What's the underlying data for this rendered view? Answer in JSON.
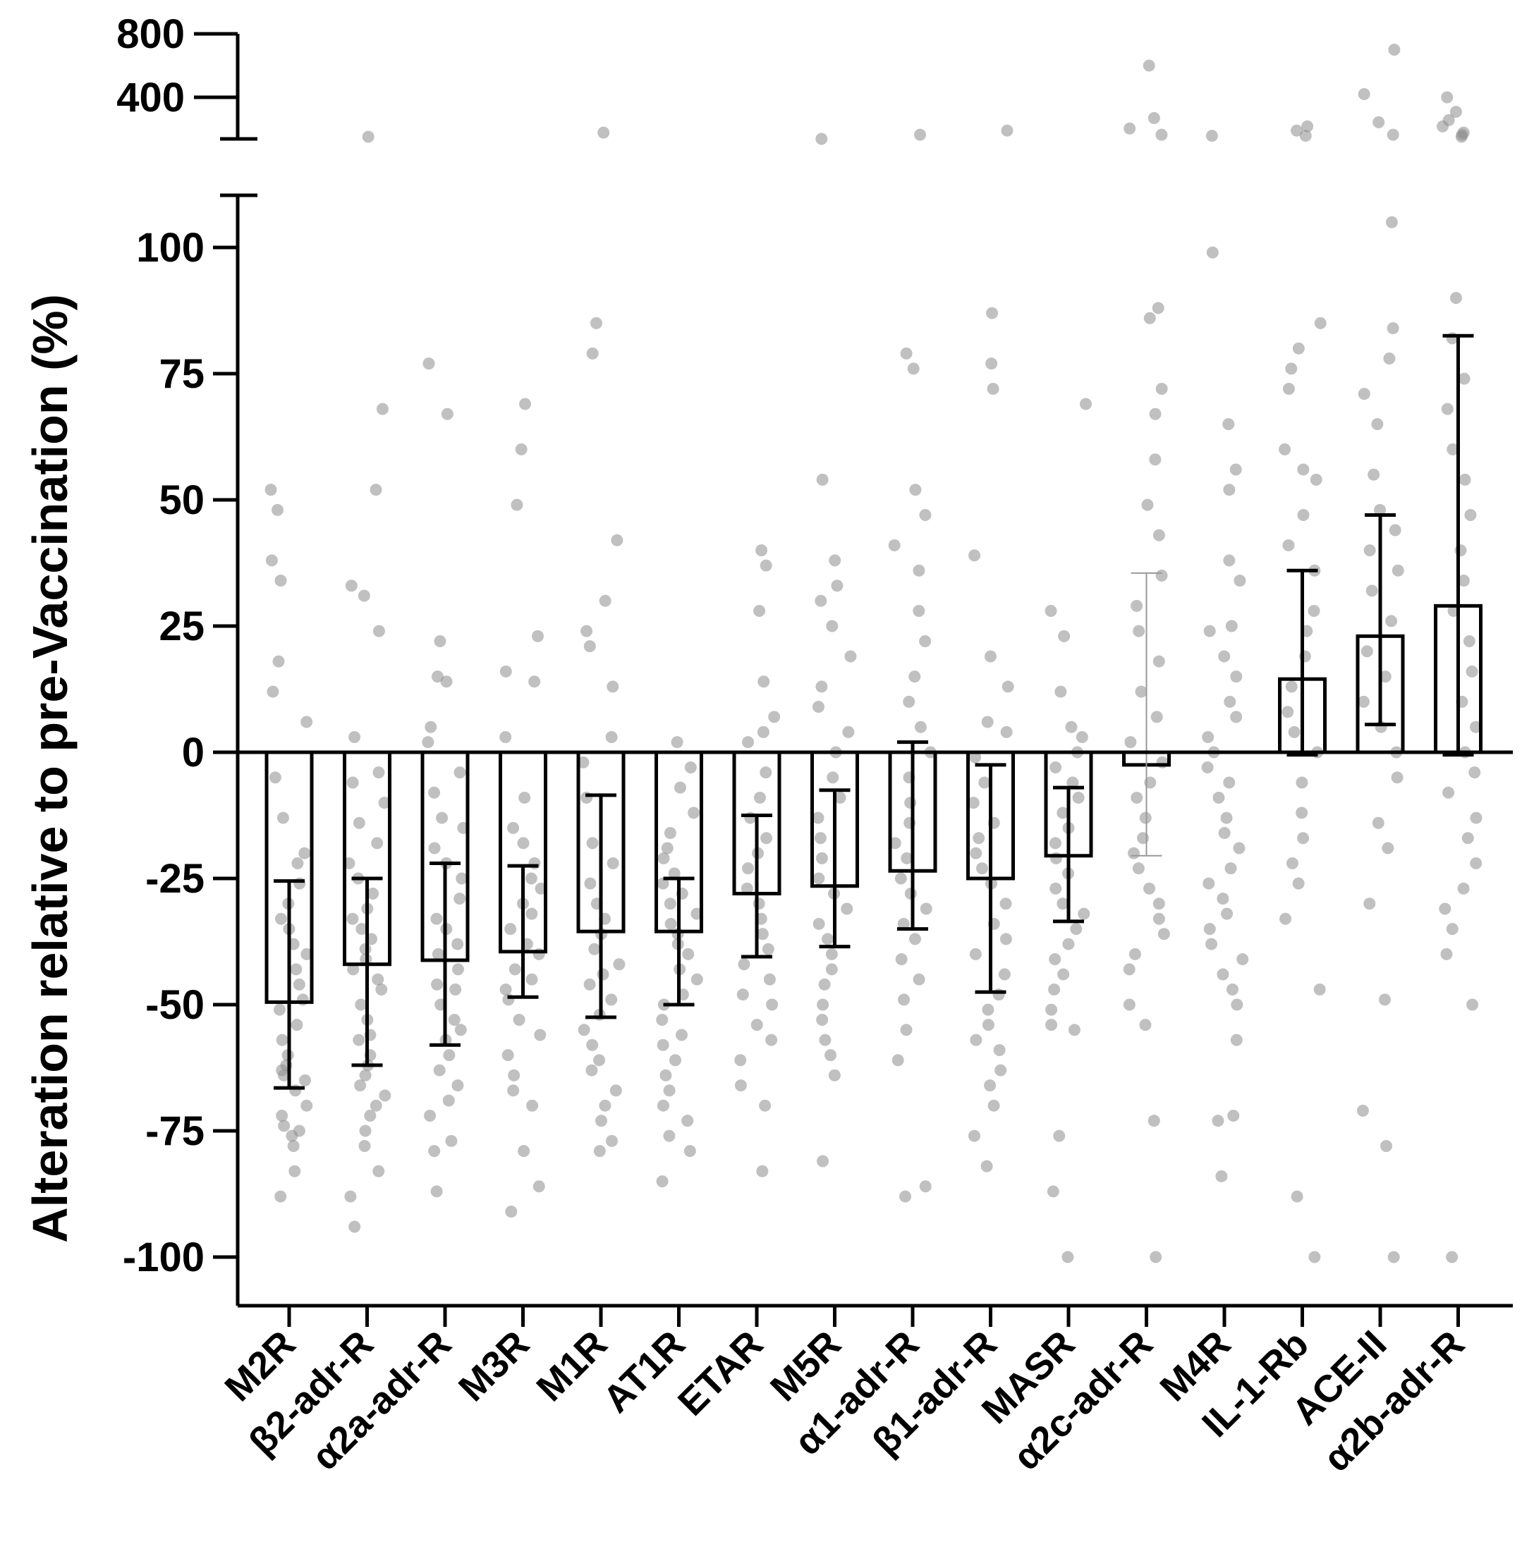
{
  "chart_data": {
    "type": "bar",
    "ylabel": "Alteration relative to pre-Vaccination (%)",
    "ylim": [
      -110,
      110
    ],
    "broken_axis": {
      "upper_segment_ticks": [
        800,
        400
      ],
      "upper_segment_tick_labels": [
        "800",
        "400"
      ],
      "note": "y-axis broken between 110 and about 200"
    },
    "y_ticks": [
      100,
      75,
      50,
      25,
      0,
      -25,
      -50,
      -75,
      -100
    ],
    "y_tick_labels": [
      "100",
      "75",
      "50",
      "25",
      "0",
      "-25",
      "-50",
      "-75",
      "-100"
    ],
    "categories": [
      "M2R",
      "β2-adr-R",
      "α2a-adr-R",
      "M3R",
      "M1R",
      "AT1R",
      "ETAR",
      "M5R",
      "α1-adr-R",
      "β1-adr-R",
      "MASR",
      "α2c-adr-R",
      "M4R",
      "IL-1-Rb",
      "ACE-II",
      "α2b-adr-R"
    ],
    "series": [
      {
        "values": [
          -49.5,
          -42,
          -41.2,
          -39.5,
          -35.5,
          -35.5,
          -28,
          -26.5,
          -23.5,
          -25,
          -20.5,
          -2.5,
          0,
          14.5,
          23,
          29
        ],
        "error_low": [
          -66.5,
          -62,
          -58,
          -48.5,
          -52.5,
          -50,
          -40.5,
          -38.5,
          -35,
          -47.5,
          -33.5,
          -20.5,
          0,
          -0.5,
          5.5,
          -0.5
        ],
        "error_high": [
          -25.5,
          -25,
          -22,
          -22.5,
          -8.5,
          -25,
          -12.5,
          -7.5,
          2,
          -2.5,
          -7,
          35.5,
          0,
          36,
          47,
          82.5
        ]
      }
    ],
    "points": [
      [
        52,
        48,
        38,
        34,
        18,
        12,
        6,
        -5,
        -13,
        -20,
        -22,
        -26,
        -30,
        -33,
        -35,
        -38,
        -40,
        -43,
        -46,
        -49,
        -51,
        -54,
        -57,
        -60,
        -62,
        -63,
        -64,
        -65,
        -67,
        -70,
        -72,
        -74,
        -75,
        -76,
        -78,
        -83,
        -88
      ],
      [
        68,
        52,
        33,
        31,
        24,
        3,
        -4,
        -6,
        -10,
        -14,
        -18,
        -22,
        -25,
        -28,
        -31,
        -33,
        -35,
        -37,
        -39,
        -41,
        -43,
        -45,
        -47,
        -50,
        -53,
        -56,
        -57,
        -60,
        -62,
        -64,
        -66,
        -68,
        -70,
        -72,
        -75,
        -78,
        -83,
        -88,
        -94,
        210
      ],
      [
        77,
        67,
        22,
        15,
        14,
        5,
        2,
        -4,
        -8,
        -13,
        -15,
        -19,
        -22,
        -25,
        -29,
        -33,
        -35,
        -38,
        -40,
        -43,
        -46,
        -47,
        -50,
        -53,
        -55,
        -57,
        -60,
        -63,
        -66,
        -69,
        -72,
        -77,
        -79,
        -87
      ],
      [
        69,
        60,
        49,
        23,
        16,
        14,
        3,
        -9,
        -15,
        -18,
        -22,
        -25,
        -27,
        -30,
        -32,
        -35,
        -38,
        -40,
        -43,
        -45,
        -47,
        -49,
        -53,
        -56,
        -60,
        -64,
        -67,
        -70,
        -79,
        -86,
        -91
      ],
      [
        85,
        79,
        42,
        30,
        24,
        21,
        13,
        3,
        -2,
        -9,
        -18,
        -22,
        -26,
        -30,
        -33,
        -36,
        -39,
        -42,
        -44,
        -46,
        -49,
        -52,
        -55,
        -58,
        -61,
        -63,
        -67,
        -70,
        -73,
        -77,
        -79,
        230
      ],
      [
        2,
        -3,
        -7,
        -12,
        -16,
        -19,
        -21,
        -24,
        -26,
        -28,
        -30,
        -32,
        -34,
        -36,
        -38,
        -40,
        -43,
        -45,
        -48,
        -50,
        -53,
        -56,
        -58,
        -61,
        -64,
        -67,
        -70,
        -73,
        -76,
        -79,
        -85
      ],
      [
        40,
        37,
        28,
        14,
        7,
        4,
        2,
        -4,
        -9,
        -13,
        -17,
        -20,
        -23,
        -27,
        -30,
        -33,
        -36,
        -39,
        -42,
        -45,
        -48,
        -50,
        -54,
        -57,
        -61,
        -66,
        -70,
        -83
      ],
      [
        54,
        38,
        33,
        30,
        25,
        19,
        13,
        9,
        4,
        0,
        -5,
        -9,
        -13,
        -17,
        -21,
        -25,
        -28,
        -31,
        -34,
        -37,
        -40,
        -43,
        -46,
        -50,
        -53,
        -57,
        -60,
        -64,
        -81,
        200
      ],
      [
        79,
        76,
        52,
        47,
        41,
        36,
        28,
        22,
        15,
        10,
        5,
        0,
        -5,
        -10,
        -14,
        -18,
        -21,
        -25,
        -28,
        -31,
        -34,
        -37,
        -41,
        -45,
        -49,
        -55,
        -61,
        -86,
        -88,
        220
      ],
      [
        87,
        77,
        72,
        39,
        19,
        13,
        6,
        4,
        -1,
        -6,
        -10,
        -14,
        -17,
        -20,
        -23,
        -26,
        -30,
        -34,
        -37,
        -40,
        -44,
        -48,
        -51,
        -54,
        -57,
        -59,
        -63,
        -66,
        -70,
        -76,
        -82,
        240
      ],
      [
        69,
        28,
        23,
        12,
        5,
        3,
        0,
        -3,
        -6,
        -9,
        -12,
        -15,
        -18,
        -21,
        -24,
        -27,
        -30,
        -32,
        -35,
        -38,
        -41,
        -44,
        -47,
        -51,
        -54,
        -55,
        -76,
        -87,
        -100
      ],
      [
        88,
        86,
        72,
        67,
        58,
        49,
        43,
        35,
        29,
        24,
        18,
        12,
        7,
        2,
        -2,
        -6,
        -9,
        -13,
        -17,
        -20,
        -23,
        -27,
        -30,
        -33,
        -36,
        -40,
        -43,
        -50,
        -54,
        -73,
        -100,
        220,
        250,
        300,
        600
      ],
      [
        99,
        65,
        56,
        52,
        38,
        34,
        25,
        24,
        19,
        15,
        10,
        7,
        3,
        0,
        -3,
        -6,
        -9,
        -13,
        -16,
        -19,
        -23,
        -26,
        -29,
        -32,
        -35,
        -38,
        -41,
        -44,
        -47,
        -50,
        -57,
        -72,
        -73,
        -84,
        215
      ],
      [
        85,
        80,
        76,
        72,
        60,
        56,
        54,
        47,
        41,
        36,
        28,
        24,
        19,
        13,
        8,
        4,
        0,
        -6,
        -12,
        -17,
        -22,
        -26,
        -33,
        -47,
        -88,
        -100,
        215,
        240,
        260
      ],
      [
        105,
        84,
        78,
        71,
        65,
        55,
        48,
        44,
        40,
        36,
        32,
        26,
        20,
        15,
        10,
        5,
        0,
        -5,
        -14,
        -19,
        -30,
        -49,
        -71,
        -78,
        -100,
        220,
        280,
        420,
        700
      ],
      [
        90,
        82,
        74,
        68,
        60,
        54,
        47,
        40,
        34,
        28,
        22,
        16,
        10,
        5,
        0,
        -4,
        -8,
        -13,
        -17,
        -22,
        -27,
        -31,
        -35,
        -40,
        -50,
        -100,
        210,
        220,
        230,
        260,
        290,
        330,
        400
      ]
    ],
    "grid": false,
    "legend": "none"
  }
}
